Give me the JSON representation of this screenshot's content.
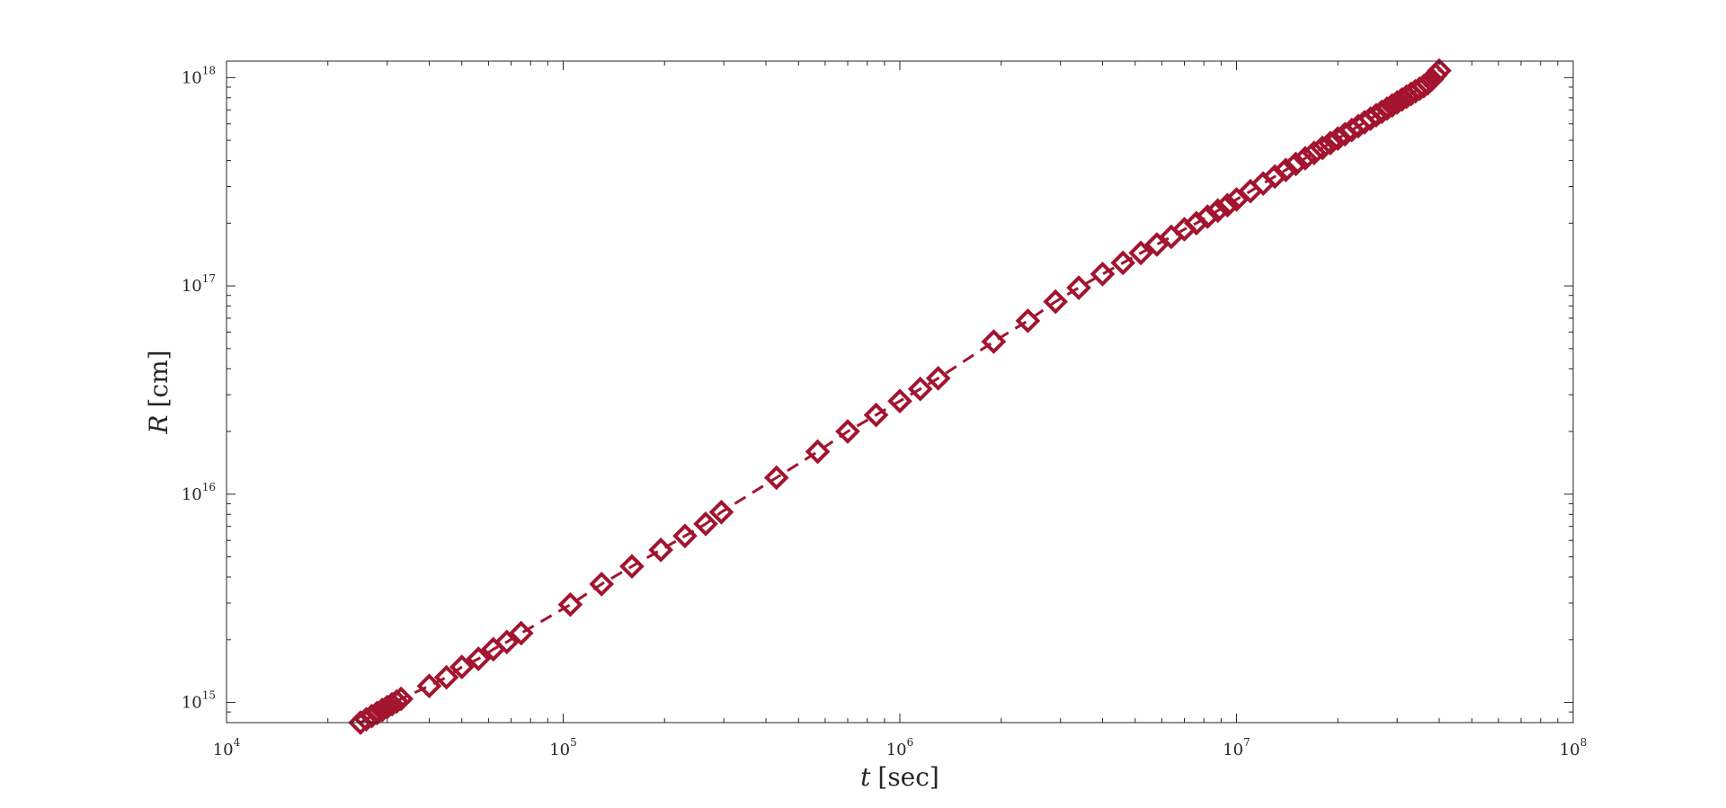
{
  "chart_data": {
    "type": "scatter",
    "title": "",
    "xlabel": {
      "var": "t",
      "unit": "[sec]"
    },
    "ylabel": {
      "var": "R",
      "unit": "[cm]"
    },
    "xscale": "log",
    "yscale": "log",
    "xlim": [
      10000,
      100000000
    ],
    "ylim": [
      800000000000000,
      1.2e+18
    ],
    "xticks": [
      {
        "base": "10",
        "exp": "4",
        "value": 10000
      },
      {
        "base": "10",
        "exp": "5",
        "value": 100000
      },
      {
        "base": "10",
        "exp": "6",
        "value": 1000000
      },
      {
        "base": "10",
        "exp": "7",
        "value": 10000000
      },
      {
        "base": "10",
        "exp": "8",
        "value": 100000000
      }
    ],
    "yticks": [
      {
        "base": "10",
        "exp": "15",
        "value": 1000000000000000.0
      },
      {
        "base": "10",
        "exp": "16",
        "value": 1e+16
      },
      {
        "base": "10",
        "exp": "17",
        "value": 1e+17
      },
      {
        "base": "10",
        "exp": "18",
        "value": 1e+18
      }
    ],
    "grid": false,
    "box": true,
    "marker": "diamond",
    "line_style": "dashed",
    "color": "#a2142f",
    "series": [
      {
        "x": [
          25000,
          26000,
          27000,
          28000,
          29000,
          30000,
          31000,
          32000,
          33000,
          40000,
          45000,
          50000,
          56000,
          62000,
          68000,
          75000,
          105000,
          130000,
          160000,
          195000,
          230000,
          265000,
          295000,
          430000,
          570000,
          700000,
          850000,
          1000000,
          1150000,
          1300000,
          1900000,
          2400000,
          2900000,
          3400000,
          4000000,
          4600000,
          5200000,
          5800000,
          6400000,
          7000000,
          7600000,
          8200000,
          8800000,
          9400000,
          10000000,
          11000000,
          12000000,
          13000000,
          14000000,
          15000000,
          16000000,
          17000000,
          18000000,
          19000000,
          20000000,
          21000000,
          22000000,
          23000000,
          24000000,
          25000000,
          26000000,
          27000000,
          28000000,
          29000000,
          30000000,
          31000000,
          32000000,
          33000000,
          34000000,
          35000000,
          36000000,
          37000000,
          38000000,
          39000000,
          40000000
        ],
        "y": [
          800000000000000,
          830000000000000,
          860000000000000,
          890000000000000,
          920000000000000,
          950000000000000,
          980000000000000,
          1010000000000000,
          1040000000000000,
          1200000000000000,
          1320000000000000,
          1480000000000000,
          1620000000000000,
          1800000000000000,
          1950000000000000,
          2150000000000000,
          2950000000000000,
          3700000000000000,
          4500000000000000,
          5400000000000000,
          6300000000000000,
          7200000000000000,
          8200000000000000,
          1.2e+16,
          1.6e+16,
          2e+16,
          2.4e+16,
          2.8e+16,
          3.2e+16,
          3.6e+16,
          5.4e+16,
          6.8e+16,
          8.4e+16,
          9.8e+16,
          1.14e+17,
          1.29e+17,
          1.44e+17,
          1.58e+17,
          1.72e+17,
          1.87e+17,
          2e+17,
          2.15e+17,
          2.3e+17,
          2.44e+17,
          2.6e+17,
          2.85e+17,
          3.1e+17,
          3.35e+17,
          3.6e+17,
          3.85e+17,
          4.1e+17,
          4.35e+17,
          4.6e+17,
          4.85e+17,
          5.1e+17,
          5.35e+17,
          5.6e+17,
          5.85e+17,
          6.1e+17,
          6.35e+17,
          6.6e+17,
          6.85e+17,
          7.1e+17,
          7.35e+17,
          7.6e+17,
          7.85e+17,
          8.1e+17,
          8.35e+17,
          8.6e+17,
          8.85e+17,
          9.1e+17,
          9.4e+17,
          9.8e+17,
          1.03e+18,
          1.08e+18
        ]
      }
    ]
  }
}
